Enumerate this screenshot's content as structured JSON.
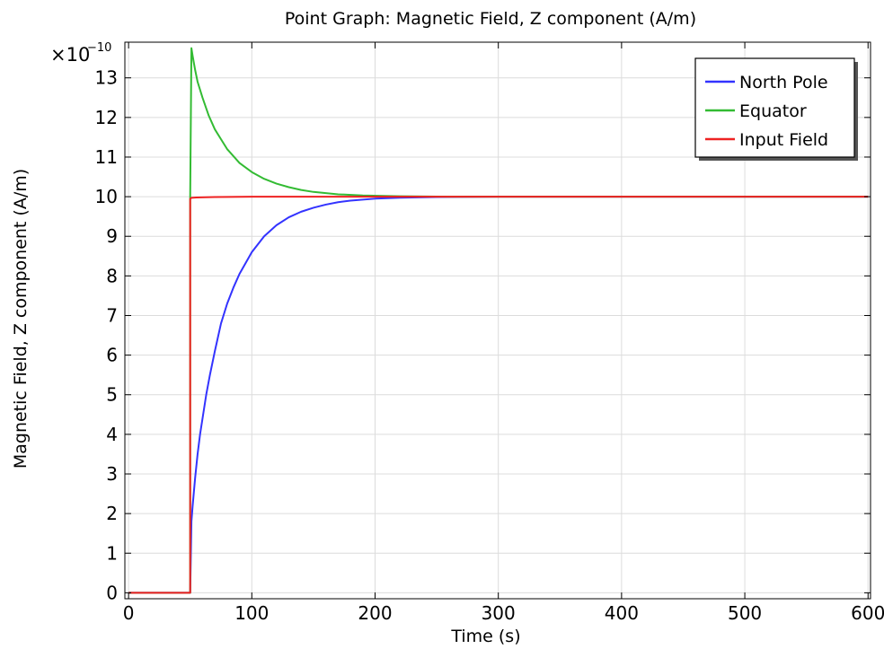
{
  "chart_data": {
    "type": "line",
    "title": "Point Graph: Magnetic Field, Z component (A/m)",
    "xlabel": "Time (s)",
    "ylabel": "Magnetic Field, Z component (A/m)",
    "y_multiplier": "×10",
    "y_exponent": "−10",
    "xlim": [
      -3,
      602
    ],
    "ylim": [
      -0.15,
      13.9
    ],
    "x_ticks": [
      0,
      100,
      200,
      300,
      400,
      500,
      600
    ],
    "y_ticks": [
      0,
      1,
      2,
      3,
      4,
      5,
      6,
      7,
      8,
      9,
      10,
      11,
      12,
      13
    ],
    "grid": true,
    "legend_position": "top-right",
    "series": [
      {
        "name": "North Pole",
        "color": "#3333ff",
        "points": [
          [
            0,
            0
          ],
          [
            50,
            0
          ],
          [
            50,
            0
          ],
          [
            51,
            1.8
          ],
          [
            52,
            2.2
          ],
          [
            54,
            2.9
          ],
          [
            56,
            3.5
          ],
          [
            58,
            4.0
          ],
          [
            60,
            4.4
          ],
          [
            63,
            5.0
          ],
          [
            66,
            5.5
          ],
          [
            70,
            6.1
          ],
          [
            75,
            6.8
          ],
          [
            80,
            7.3
          ],
          [
            85,
            7.7
          ],
          [
            90,
            8.05
          ],
          [
            100,
            8.6
          ],
          [
            110,
            9.0
          ],
          [
            120,
            9.28
          ],
          [
            130,
            9.48
          ],
          [
            140,
            9.62
          ],
          [
            150,
            9.72
          ],
          [
            160,
            9.8
          ],
          [
            170,
            9.86
          ],
          [
            180,
            9.9
          ],
          [
            200,
            9.95
          ],
          [
            220,
            9.975
          ],
          [
            250,
            9.99
          ],
          [
            300,
            10.0
          ],
          [
            400,
            10.0
          ],
          [
            500,
            10.0
          ],
          [
            600,
            10.0
          ]
        ]
      },
      {
        "name": "Equator",
        "color": "#33bb33",
        "points": [
          [
            0,
            0
          ],
          [
            50,
            0
          ],
          [
            50,
            10.0
          ],
          [
            51,
            13.75
          ],
          [
            52,
            13.55
          ],
          [
            54,
            13.2
          ],
          [
            56,
            12.9
          ],
          [
            60,
            12.5
          ],
          [
            65,
            12.05
          ],
          [
            70,
            11.7
          ],
          [
            75,
            11.45
          ],
          [
            80,
            11.2
          ],
          [
            90,
            10.85
          ],
          [
            100,
            10.62
          ],
          [
            110,
            10.45
          ],
          [
            120,
            10.33
          ],
          [
            130,
            10.24
          ],
          [
            140,
            10.17
          ],
          [
            150,
            10.12
          ],
          [
            170,
            10.06
          ],
          [
            190,
            10.03
          ],
          [
            220,
            10.01
          ],
          [
            260,
            10.0
          ],
          [
            300,
            10.0
          ],
          [
            400,
            10.0
          ],
          [
            500,
            10.0
          ],
          [
            600,
            10.0
          ]
        ]
      },
      {
        "name": "Input Field",
        "color": "#ee2222",
        "points": [
          [
            0,
            0
          ],
          [
            50,
            0
          ],
          [
            50,
            9.95
          ],
          [
            51,
            9.97
          ],
          [
            55,
            9.98
          ],
          [
            70,
            9.99
          ],
          [
            100,
            10.0
          ],
          [
            200,
            10.0
          ],
          [
            300,
            10.0
          ],
          [
            400,
            10.0
          ],
          [
            500,
            10.0
          ],
          [
            600,
            10.0
          ]
        ]
      }
    ]
  }
}
